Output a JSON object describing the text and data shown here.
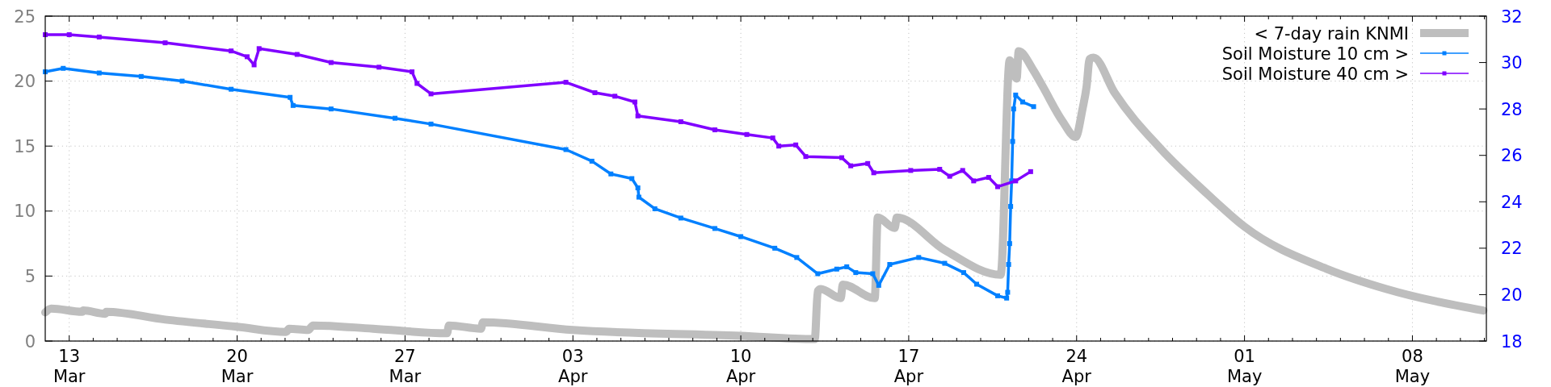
{
  "chart_data": {
    "type": "line",
    "xlim": [
      "--03-12T00:00",
      "--05-11T02:00"
    ],
    "xticks": [
      {
        "value": "--03-13",
        "label": "13\nMar"
      },
      {
        "value": "--03-14",
        "label": null
      },
      {
        "value": "--03-15",
        "label": null
      },
      {
        "value": "--03-16",
        "label": null
      },
      {
        "value": "--03-17",
        "label": null
      },
      {
        "value": "--03-18",
        "label": null
      },
      {
        "value": "--03-19",
        "label": null
      },
      {
        "value": "--03-20",
        "label": "20\nMar"
      },
      {
        "value": "--03-21",
        "label": null
      },
      {
        "value": "--03-22",
        "label": null
      },
      {
        "value": "--03-23",
        "label": null
      },
      {
        "value": "--03-24",
        "label": null
      },
      {
        "value": "--03-25",
        "label": null
      },
      {
        "value": "--03-26",
        "label": null
      },
      {
        "value": "--03-27",
        "label": "27\nMar"
      },
      {
        "value": "--03-28",
        "label": null
      },
      {
        "value": "--03-29",
        "label": null
      },
      {
        "value": "--03-30",
        "label": null
      },
      {
        "value": "--03-31",
        "label": null
      },
      {
        "value": "--04-01",
        "label": null
      },
      {
        "value": "--04-02",
        "label": null
      },
      {
        "value": "--04-03",
        "label": "03\nApr"
      },
      {
        "value": "--04-04",
        "label": null
      },
      {
        "value": "--04-05",
        "label": null
      },
      {
        "value": "--04-06",
        "label": null
      },
      {
        "value": "--04-07",
        "label": null
      },
      {
        "value": "--04-08",
        "label": null
      },
      {
        "value": "--04-09",
        "label": null
      },
      {
        "value": "--04-10",
        "label": "10\nApr"
      },
      {
        "value": "--04-11",
        "label": null
      },
      {
        "value": "--04-12",
        "label": null
      },
      {
        "value": "--04-13",
        "label": null
      },
      {
        "value": "--04-14",
        "label": null
      },
      {
        "value": "--04-15",
        "label": null
      },
      {
        "value": "--04-16",
        "label": null
      },
      {
        "value": "--04-17",
        "label": "17\nApr"
      },
      {
        "value": "--04-18",
        "label": null
      },
      {
        "value": "--04-19",
        "label": null
      },
      {
        "value": "--04-20",
        "label": null
      },
      {
        "value": "--04-21",
        "label": null
      },
      {
        "value": "--04-22",
        "label": null
      },
      {
        "value": "--04-23",
        "label": null
      },
      {
        "value": "--04-24",
        "label": "24\nApr"
      },
      {
        "value": "--04-25",
        "label": null
      },
      {
        "value": "--04-26",
        "label": null
      },
      {
        "value": "--04-27",
        "label": null
      },
      {
        "value": "--04-28",
        "label": null
      },
      {
        "value": "--04-29",
        "label": null
      },
      {
        "value": "--04-30",
        "label": null
      },
      {
        "value": "--05-01",
        "label": "01\nMay"
      },
      {
        "value": "--05-02",
        "label": null
      },
      {
        "value": "--05-03",
        "label": null
      },
      {
        "value": "--05-04",
        "label": null
      },
      {
        "value": "--05-05",
        "label": null
      },
      {
        "value": "--05-06",
        "label": null
      },
      {
        "value": "--05-07",
        "label": null
      },
      {
        "value": "--05-08",
        "label": "08\nMay"
      },
      {
        "value": "--05-09",
        "label": null
      },
      {
        "value": "--05-10",
        "label": null
      },
      {
        "value": "--05-11",
        "label": null
      }
    ],
    "ylim": [
      0,
      25
    ],
    "yticks": [
      0,
      5,
      10,
      15,
      20,
      25
    ],
    "y2lim": [
      18,
      32
    ],
    "y2ticks": [
      18,
      20,
      22,
      24,
      26,
      28,
      30,
      32
    ],
    "grid": true,
    "legend": "top right",
    "marker": "square",
    "series": [
      {
        "name": "< 7-day rain KNMI",
        "color": "#bebebe",
        "marker": "none",
        "x": [
          "--03-12T00:00",
          "--03-12T06:00",
          "--03-13T13:00",
          "--03-13T14:00",
          "--03-14T12:00",
          "--03-14T13:00",
          "--03-17T00:00",
          "--03-20T00:00",
          "--03-22T01:00",
          "--03-22T04:00",
          "--03-22T23:00",
          "--03-23T04:00",
          "--03-25T16:00",
          "--03-28T18:00",
          "--03-28T20:00",
          "--03-30T04:00",
          "--03-30T06:00",
          "--04-03T00:00",
          "--04-10T00:00",
          "--04-13T02:00",
          "--04-13T05:00",
          "--04-13T08:00",
          "--04-14T04:00",
          "--04-14T06:00",
          "--04-15T14:00",
          "--04-15T17:00",
          "--04-16T10:00",
          "--04-16T12:00",
          "--04-18T12:00",
          "--04-20T20:00",
          "--04-21T05:00",
          "--04-21T12:00",
          "--04-21T14:00",
          "--04-22T05:00",
          "--04-22T14:00",
          "--04-23T10:00",
          "--04-23T23:00",
          "--04-24T06:00",
          "--04-24T10:00",
          "--04-24T13:00",
          "--04-24T17:00",
          "--04-25T14:00",
          "--04-27T12:00",
          "--04-29T11:00",
          "--05-01T00:00",
          "--05-04T12:00",
          "--05-06T22:00",
          "--05-10T23:00"
        ],
        "values": [
          2.2,
          2.5,
          2.25,
          2.35,
          2.1,
          2.25,
          1.65,
          1.1,
          0.7,
          0.95,
          0.85,
          1.2,
          0.95,
          0.6,
          1.2,
          0.95,
          1.45,
          0.85,
          0.4,
          0.15,
          3.85,
          4.0,
          3.3,
          4.35,
          3.3,
          9.5,
          8.7,
          9.5,
          7.0,
          5.1,
          21.6,
          20.2,
          22.3,
          20.8,
          19.6,
          16.9,
          15.7,
          17.9,
          19.6,
          21.7,
          21.8,
          19.1,
          14.8,
          11.3,
          8.8,
          5.5,
          4.0,
          2.35
        ]
      },
      {
        "name": "Soil Moisture 10 cm >",
        "color": "#0080ff",
        "axis": "y2",
        "x": [
          "--03-12T00:00",
          "--03-12T18:00",
          "--03-14T06:00",
          "--03-16T00:00",
          "--03-17T17:00",
          "--03-19T18:00",
          "--03-22T05:00",
          "--03-22T08:00",
          "--03-23T22:00",
          "--03-26T14:00",
          "--03-28T02:00",
          "--04-02T17:00",
          "--04-03T19:00",
          "--04-04T14:00",
          "--04-05T11:00",
          "--04-05T17:00",
          "--04-05T18:00",
          "--04-06T10:00",
          "--04-07T12:00",
          "--04-08T22:00",
          "--04-10T00:00",
          "--04-11T10:00",
          "--04-12T08:00",
          "--04-13T05:00",
          "--04-14T00:00",
          "--04-14T10:00",
          "--04-14T19:00",
          "--04-15T12:00",
          "--04-15T18:00",
          "--04-16T05:00",
          "--04-17T10:00",
          "--04-18T12:00",
          "--04-19T07:00",
          "--04-19T20:00",
          "--04-20T17:00",
          "--04-21T02:00",
          "--04-21T03:00",
          "--04-21T04:00",
          "--04-21T05:00",
          "--04-21T06:00",
          "--04-21T07:00",
          "--04-21T08:00",
          "--04-21T09:00",
          "--04-21T11:00",
          "--04-21T18:00",
          "--04-22T05:00"
        ],
        "values": [
          29.6,
          29.75,
          29.55,
          29.4,
          29.2,
          28.85,
          28.5,
          28.15,
          28.0,
          27.6,
          27.35,
          26.25,
          25.75,
          25.2,
          25.0,
          24.6,
          24.2,
          23.7,
          23.3,
          22.85,
          22.5,
          22.0,
          21.6,
          20.9,
          21.1,
          21.2,
          20.95,
          20.9,
          20.4,
          21.3,
          21.6,
          21.35,
          20.95,
          20.45,
          19.95,
          19.85,
          20.1,
          21.3,
          22.2,
          23.8,
          24.9,
          26.6,
          28.0,
          28.6,
          28.3,
          28.1
        ]
      },
      {
        "name": "Soil Moisture 40 cm >",
        "color": "#8000ff",
        "axis": "y2",
        "x": [
          "--03-12T00:00",
          "--03-13T00:00",
          "--03-14T06:00",
          "--03-17T00:00",
          "--03-19T18:00",
          "--03-20T10:00",
          "--03-20T17:00",
          "--03-20T22:00",
          "--03-22T12:00",
          "--03-23T22:00",
          "--03-25T22:00",
          "--03-27T07:00",
          "--03-27T12:00",
          "--03-28T02:00",
          "--04-02T17:00",
          "--04-03T22:00",
          "--04-04T18:00",
          "--04-05T14:00",
          "--04-05T17:00",
          "--04-07T12:00",
          "--04-08T22:00",
          "--04-10T06:00",
          "--04-11T08:00",
          "--04-11T14:00",
          "--04-12T07:00",
          "--04-12T17:00",
          "--04-14T05:00",
          "--04-14T14:00",
          "--04-15T07:00",
          "--04-15T13:00",
          "--04-17T02:00",
          "--04-18T07:00",
          "--04-18T17:00",
          "--04-19T06:00",
          "--04-19T17:00",
          "--04-20T08:00",
          "--04-20T17:00",
          "--04-21T11:00",
          "--04-22T02:00"
        ],
        "values": [
          31.2,
          31.2,
          31.1,
          30.85,
          30.5,
          30.25,
          29.9,
          30.6,
          30.35,
          30.0,
          29.8,
          29.6,
          29.1,
          28.65,
          29.15,
          28.7,
          28.55,
          28.3,
          27.7,
          27.45,
          27.1,
          26.9,
          26.75,
          26.4,
          26.45,
          25.95,
          25.9,
          25.55,
          25.65,
          25.25,
          25.35,
          25.4,
          25.1,
          25.35,
          24.9,
          25.05,
          24.65,
          24.9,
          25.3
        ]
      }
    ]
  }
}
